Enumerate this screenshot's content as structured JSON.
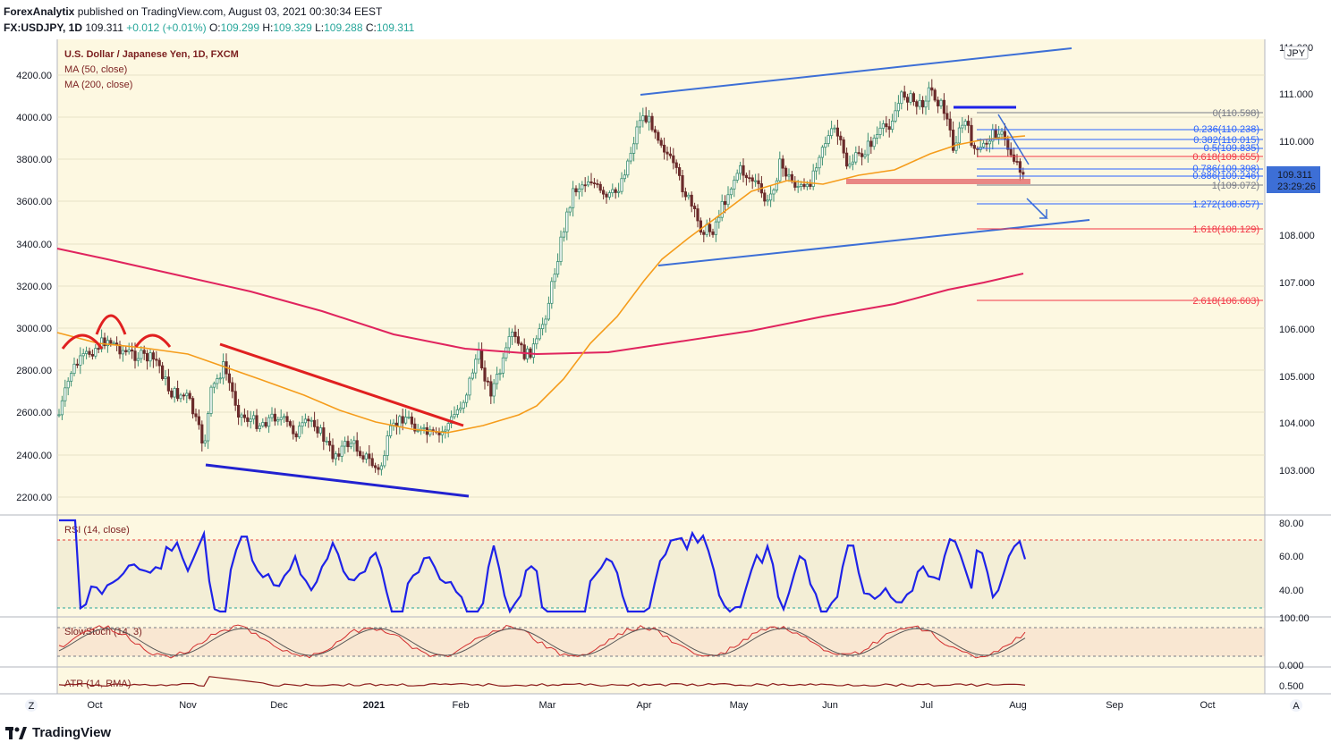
{
  "header": {
    "publisher": "ForexAnalytix",
    "published_text": "published on TradingView.com, August 03, 2021 00:30:34 EEST",
    "symbol": "FX:USDJPY, 1D",
    "last": "109.311",
    "change": "+0.012 (+0.01%)",
    "o_label": "O:",
    "o": "109.299",
    "h_label": "H:",
    "h": "109.329",
    "l_label": "L:",
    "l": "109.288",
    "c_label": "C:",
    "c": "109.311"
  },
  "price_pane": {
    "title": "U.S. Dollar / Japanese Yen, 1D, FXCM",
    "ma50_label": "MA (50, close)",
    "ma200_label": "MA (200, close)",
    "left_ticks": [
      "4200.00",
      "4000.00",
      "3800.00",
      "3600.00",
      "3400.00",
      "3200.00",
      "3000.00",
      "2800.00",
      "2600.00",
      "2400.00",
      "2200.00"
    ],
    "right_ticks": [
      "111.000",
      "110.000",
      "109.000",
      "108.000",
      "107.000",
      "106.000",
      "105.000",
      "104.000",
      "103.000"
    ],
    "top_tick": "111.000",
    "currency_badge": "JPY",
    "price_label": "109.311",
    "countdown_label": "23:29:26"
  },
  "fib": {
    "levels": [
      {
        "text": "0(110.598)",
        "color": "#787b86"
      },
      {
        "text": "0.236(110.238)",
        "color": "#2962ff"
      },
      {
        "text": "0.382(110.015)",
        "color": "#2962ff"
      },
      {
        "text": "0.5(109.835)",
        "color": "#2962ff"
      },
      {
        "text": "0.618(109.655)",
        "color": "#f23645"
      },
      {
        "text": "0.786(109.398)",
        "color": "#2962ff"
      },
      {
        "text": "0.886(109.246)",
        "color": "#2962ff"
      },
      {
        "text": "1(109.072)",
        "color": "#787b86"
      },
      {
        "text": "1.272(108.657)",
        "color": "#2962ff"
      },
      {
        "text": "1.618(108.129)",
        "color": "#f23645"
      },
      {
        "text": "2.618(106.603)",
        "color": "#f23645"
      }
    ]
  },
  "rsi_pane": {
    "title": "RSI (14, close)",
    "ticks": [
      "80.00",
      "60.00",
      "40.00"
    ]
  },
  "stoch_pane": {
    "title": "SlowStoch (14, 3)",
    "ticks": [
      "100.00",
      "0.000"
    ]
  },
  "atr_pane": {
    "title": "ATR (14, RMA)",
    "ticks": [
      "0.500"
    ]
  },
  "x_axis": {
    "labels": [
      "Oct",
      "Nov",
      "Dec",
      "2021",
      "Feb",
      "Mar",
      "Apr",
      "May",
      "Jun",
      "Jul",
      "Aug",
      "Sep",
      "Oct"
    ],
    "z_button": "Z",
    "a_button": "A"
  },
  "footer": {
    "brand": "TradingView"
  },
  "colors": {
    "pane_bg": "#fdf8e1",
    "ma50": "#f59c1b",
    "ma200": "#e0245e",
    "trend_blue": "#2962ff",
    "trend_red": "#e02020",
    "rsi": "#1e22e8",
    "price_badge": "#3d6fd6"
  },
  "chart_data": {
    "type": "candlestick",
    "symbol": "USDJPY",
    "timeframe": "1D",
    "ylim_right": [
      102.5,
      111.8
    ],
    "ylim_left": [
      2200,
      4200
    ],
    "x_range": [
      "Sep 2020",
      "Oct 2021"
    ],
    "approx_closes_monthly": [
      {
        "x": "Oct 2020",
        "y": 105.5
      },
      {
        "x": "Nov 2020",
        "y": 104.3
      },
      {
        "x": "Dec 2020",
        "y": 103.5
      },
      {
        "x": "Jan 2021",
        "y": 103.2
      },
      {
        "x": "Feb 2021",
        "y": 104.8
      },
      {
        "x": "Mar 2021",
        "y": 108.6
      },
      {
        "x": "Apr 2021",
        "y": 110.5
      },
      {
        "x": "May 2021",
        "y": 108.9
      },
      {
        "x": "Jun 2021",
        "y": 110.2
      },
      {
        "x": "Jul 2021",
        "y": 110.6
      },
      {
        "x": "Aug 2021",
        "y": 109.3
      }
    ],
    "last_close": 109.311,
    "rsi_ylim": [
      20,
      85
    ],
    "rsi_levels": [
      70,
      30
    ]
  }
}
